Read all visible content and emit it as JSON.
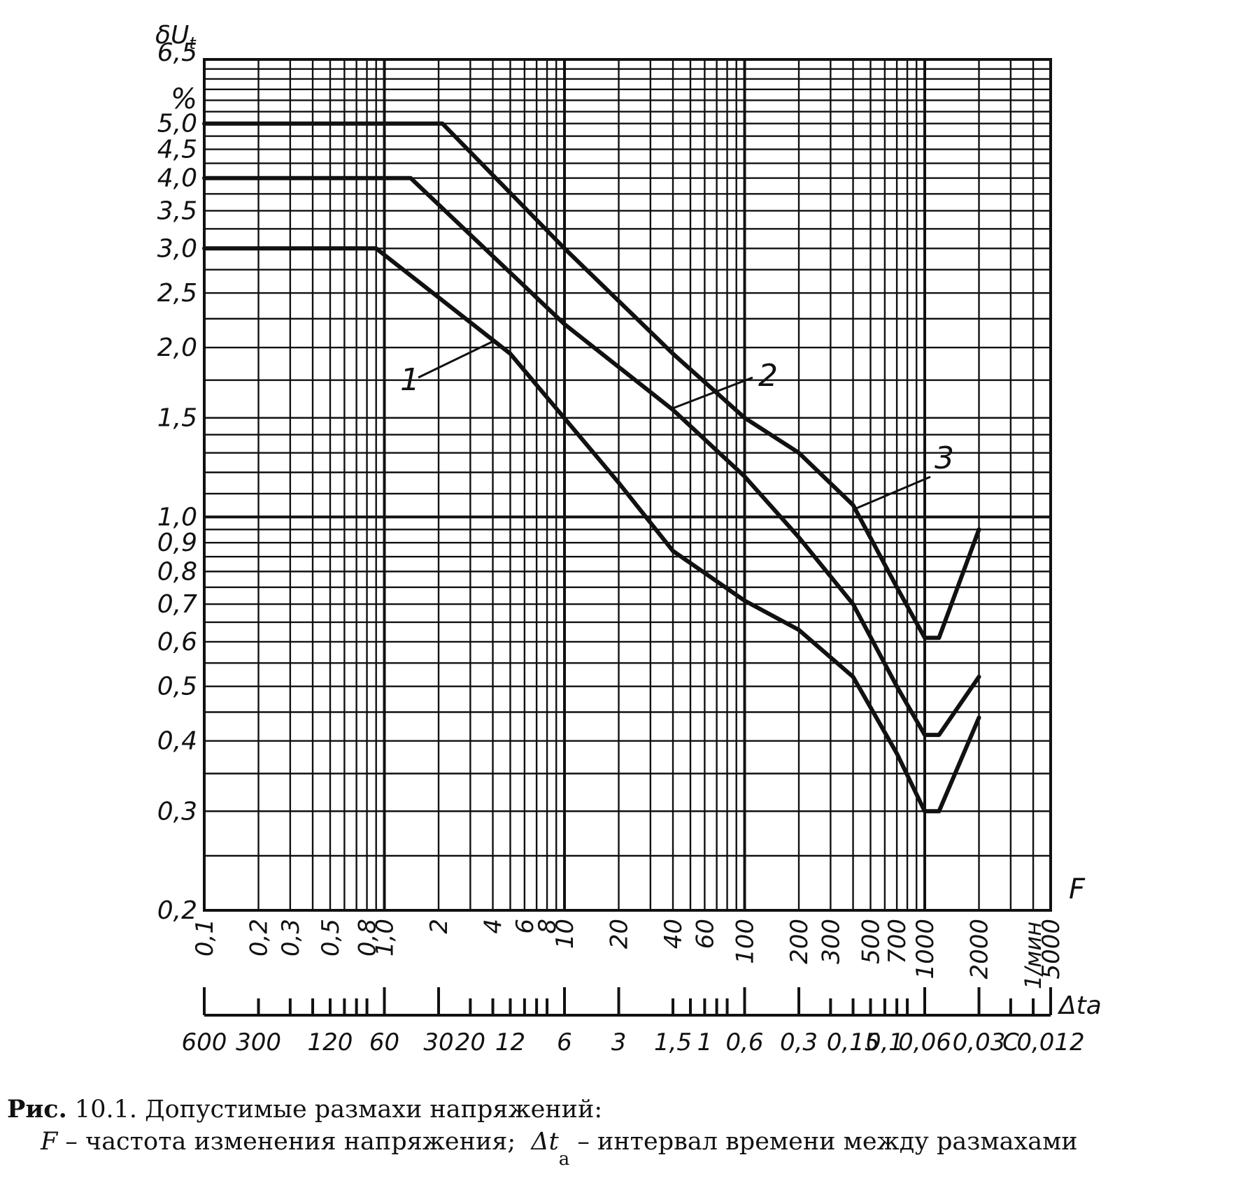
{
  "chart_data": {
    "type": "line",
    "title": "",
    "x_axis": {
      "label": "F",
      "unit": "1/мин",
      "scale": "log",
      "range": [
        0.1,
        5000
      ],
      "tick_labels": [
        "0,1",
        "0,2",
        "0,3",
        "0,5",
        "0,8",
        "1,0",
        "2",
        "4",
        "6",
        "8",
        "10",
        "20",
        "40",
        "60",
        "100",
        "200",
        "300",
        "500",
        "700",
        "1000",
        "2000",
        "5000"
      ]
    },
    "x_axis_secondary": {
      "label": "Δta",
      "tick_labels": [
        "600",
        "300",
        "120",
        "60",
        "30",
        "20",
        "12",
        "6",
        "3",
        "1,5",
        "1",
        "0,6",
        "0,3",
        "0,15",
        "0,1",
        "0,06",
        "0,03",
        "C",
        "0,012"
      ]
    },
    "y_axis": {
      "label": "δU",
      "label_sub": "t",
      "unit": "%",
      "scale": "log",
      "range": [
        0.2,
        6.5
      ],
      "tick_labels": [
        "6,5",
        "5,0",
        "4,5",
        "4,0",
        "3,5",
        "3,0",
        "2,5",
        "2,0",
        "1,5",
        "1,0",
        "0,9",
        "0,8",
        "0,7",
        "0,6",
        "0,5",
        "0,4",
        "0,3",
        "0,2"
      ]
    },
    "grid": true,
    "series": [
      {
        "name": "1",
        "points": [
          [
            0.1,
            3.0
          ],
          [
            0.9,
            3.0
          ],
          [
            5,
            1.95
          ],
          [
            20,
            1.15
          ],
          [
            40,
            0.87
          ],
          [
            100,
            0.71
          ],
          [
            200,
            0.63
          ],
          [
            400,
            0.52
          ],
          [
            700,
            0.38
          ],
          [
            1000,
            0.3
          ],
          [
            1200,
            0.3
          ],
          [
            2000,
            0.44
          ]
        ]
      },
      {
        "name": "2",
        "points": [
          [
            0.1,
            4.0
          ],
          [
            1.4,
            4.0
          ],
          [
            10,
            2.2
          ],
          [
            40,
            1.55
          ],
          [
            100,
            1.18
          ],
          [
            200,
            0.92
          ],
          [
            400,
            0.7
          ],
          [
            700,
            0.5
          ],
          [
            1000,
            0.41
          ],
          [
            1200,
            0.41
          ],
          [
            2000,
            0.52
          ]
        ]
      },
      {
        "name": "3",
        "points": [
          [
            0.1,
            5.0
          ],
          [
            2.1,
            5.0
          ],
          [
            10,
            3.0
          ],
          [
            40,
            1.95
          ],
          [
            100,
            1.5
          ],
          [
            200,
            1.3
          ],
          [
            400,
            1.05
          ],
          [
            700,
            0.75
          ],
          [
            1000,
            0.61
          ],
          [
            1200,
            0.61
          ],
          [
            2000,
            0.95
          ]
        ]
      }
    ]
  },
  "caption": {
    "fig_label": "Рис.",
    "fig_number": "10.1.",
    "title": "Допустимые размахи напряжений:",
    "line2_F": "F",
    "line2_F_desc": " – частота изменения напряжения;  ",
    "line2_dt": "Δt",
    "line2_dt_sub": "a",
    "line2_dt_desc": " – интервал времени между размахами"
  }
}
